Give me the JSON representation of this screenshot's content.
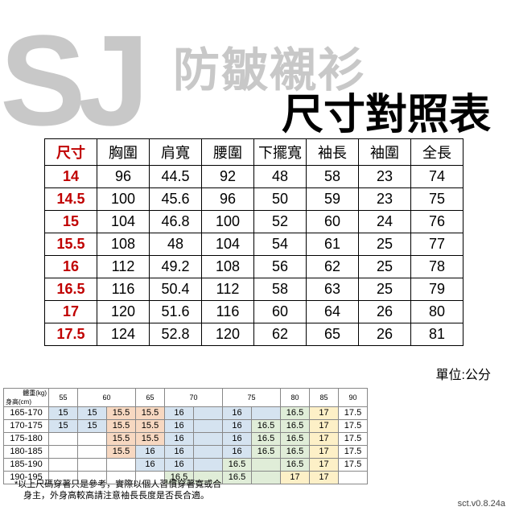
{
  "bg_logo": "SJ",
  "bg_sub": "防皺襯衫",
  "title": "尺寸對照表",
  "unit": "單位:公分",
  "t1_headers": [
    "尺寸",
    "胸圍",
    "肩寬",
    "腰圍",
    "下擺寬",
    "袖長",
    "袖圍",
    "全長"
  ],
  "t1_rows": [
    [
      "14",
      "96",
      "44.5",
      "92",
      "48",
      "58",
      "23",
      "74"
    ],
    [
      "14.5",
      "100",
      "45.6",
      "96",
      "50",
      "59",
      "23",
      "75"
    ],
    [
      "15",
      "104",
      "46.8",
      "100",
      "52",
      "60",
      "24",
      "76"
    ],
    [
      "15.5",
      "108",
      "48",
      "104",
      "54",
      "61",
      "25",
      "77"
    ],
    [
      "16",
      "112",
      "49.2",
      "108",
      "56",
      "62",
      "25",
      "78"
    ],
    [
      "16.5",
      "116",
      "50.4",
      "112",
      "58",
      "63",
      "25",
      "79"
    ],
    [
      "17",
      "120",
      "51.6",
      "116",
      "60",
      "64",
      "26",
      "80"
    ],
    [
      "17.5",
      "124",
      "52.8",
      "120",
      "62",
      "65",
      "26",
      "81"
    ]
  ],
  "t2_corner_a": "體重(kg)",
  "t2_corner_b": "身高(cm)",
  "t2_cols": [
    "55",
    "60",
    "65",
    "70",
    "75",
    "80",
    "85",
    "90"
  ],
  "t2_heights": [
    "165-170",
    "170-175",
    "175-180",
    "180-185",
    "185-190",
    "190-195"
  ],
  "t2": [
    [
      [
        "15",
        "b"
      ],
      [
        "15",
        "b"
      ],
      [
        "15.5",
        "o"
      ],
      [
        "15.5",
        "o"
      ],
      [
        "16",
        "b"
      ],
      [
        "",
        "b"
      ],
      [
        "16",
        "b"
      ],
      [
        "",
        "b"
      ],
      [
        "16.5",
        "g"
      ],
      [
        "17",
        "y"
      ],
      [
        "17.5",
        ""
      ]
    ],
    [
      [
        "15",
        "b"
      ],
      [
        "15",
        "b"
      ],
      [
        "15.5",
        "o"
      ],
      [
        "15.5",
        "o"
      ],
      [
        "16",
        "b"
      ],
      [
        "",
        "b"
      ],
      [
        "16",
        "b"
      ],
      [
        "16.5",
        "g"
      ],
      [
        "16.5",
        "g"
      ],
      [
        "17",
        "y"
      ],
      [
        "17.5",
        ""
      ]
    ],
    [
      [
        "",
        ""
      ],
      [
        "",
        ""
      ],
      [
        "15.5",
        "o"
      ],
      [
        "15.5",
        "o"
      ],
      [
        "16",
        "b"
      ],
      [
        "",
        "b"
      ],
      [
        "16",
        "b"
      ],
      [
        "16.5",
        "g"
      ],
      [
        "16.5",
        "g"
      ],
      [
        "17",
        "y"
      ],
      [
        "17.5",
        ""
      ]
    ],
    [
      [
        "",
        ""
      ],
      [
        "",
        ""
      ],
      [
        "15.5",
        "o"
      ],
      [
        "16",
        "b"
      ],
      [
        "16",
        "b"
      ],
      [
        "",
        "b"
      ],
      [
        "16",
        "b"
      ],
      [
        "16.5",
        "g"
      ],
      [
        "16.5",
        "g"
      ],
      [
        "17",
        "y"
      ],
      [
        "17.5",
        ""
      ]
    ],
    [
      [
        "",
        ""
      ],
      [
        "",
        ""
      ],
      [
        "",
        ""
      ],
      [
        "16",
        "b"
      ],
      [
        "16",
        "b"
      ],
      [
        "",
        "b"
      ],
      [
        "16.5",
        "g"
      ],
      [
        "",
        "g"
      ],
      [
        "16.5",
        "g"
      ],
      [
        "17",
        "y"
      ],
      [
        "17.5",
        ""
      ]
    ],
    [
      [
        "",
        ""
      ],
      [
        "",
        ""
      ],
      [
        "",
        ""
      ],
      [
        "",
        ""
      ],
      [
        "16.5",
        "g"
      ],
      [
        "",
        "g"
      ],
      [
        "16.5",
        "g"
      ],
      [
        "",
        "g"
      ],
      [
        "17",
        "y"
      ],
      [
        "17",
        "y"
      ],
      [
        "",
        ""
      ]
    ]
  ],
  "foot1": "*以上尺碼穿著只是參考，實際以個人習慣穿著寬或合",
  "foot2": "　身主，外身高較高請注意袖長長度是否長合適。",
  "ver": "sct.v0.8.24a",
  "colors": {
    "b": "c-blue",
    "o": "c-orange",
    "g": "c-green",
    "y": "c-yellow",
    "": ""
  }
}
